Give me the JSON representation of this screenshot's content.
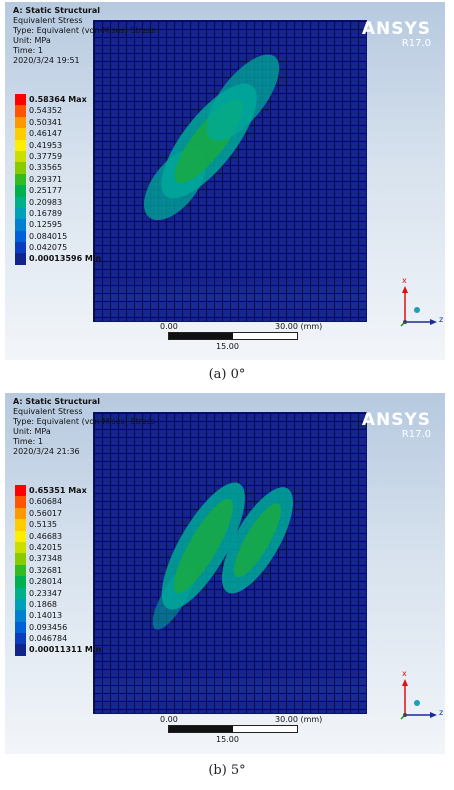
{
  "panels": [
    {
      "title": "A: Static Structural",
      "result": "Equivalent Stress",
      "type_line": "Type: Equivalent (von-Mises) Stress",
      "unit": "Unit: MPa",
      "time": "Time: 1",
      "date": "2020/3/24 19:51",
      "brand": "ANSYS",
      "version": "R17.0",
      "legend": [
        "0.58364 Max",
        "0.54352",
        "0.50341",
        "0.46147",
        "0.41953",
        "0.37759",
        "0.33565",
        "0.29371",
        "0.25177",
        "0.20983",
        "0.16789",
        "0.12595",
        "0.084015",
        "0.042075",
        "0.00013596 Min"
      ],
      "scale_labels": [
        "0.00",
        "30.00 (mm)",
        "15.00"
      ],
      "axis_labels": [
        "x",
        "z"
      ],
      "caption": "(a)  0°"
    },
    {
      "title": "A: Static Structural",
      "result": "Equivalent Stress",
      "type_line": "Type: Equivalent (von-Mises) Stress",
      "unit": "Unit: MPa",
      "time": "Time: 1",
      "date": "2020/3/24 21:36",
      "brand": "ANSYS",
      "version": "R17.0",
      "legend": [
        "0.65351 Max",
        "0.60684",
        "0.56017",
        "0.5135",
        "0.46683",
        "0.42015",
        "0.37348",
        "0.32681",
        "0.28014",
        "0.23347",
        "0.1868",
        "0.14013",
        "0.093456",
        "0.046784",
        "0.00011311 Min"
      ],
      "scale_labels": [
        "0.00",
        "30.00 (mm)",
        "15.00"
      ],
      "axis_labels": [
        "x",
        "z"
      ],
      "caption": "(b)  5°"
    }
  ],
  "legend_colors": [
    "#ff0000",
    "#ff5500",
    "#ff9900",
    "#ffcc00",
    "#ffee00",
    "#ccdd00",
    "#88cc00",
    "#33bb22",
    "#00b050",
    "#00b08a",
    "#00a0b8",
    "#0080d0",
    "#0060d8",
    "#0a3cc0",
    "#10248c"
  ]
}
